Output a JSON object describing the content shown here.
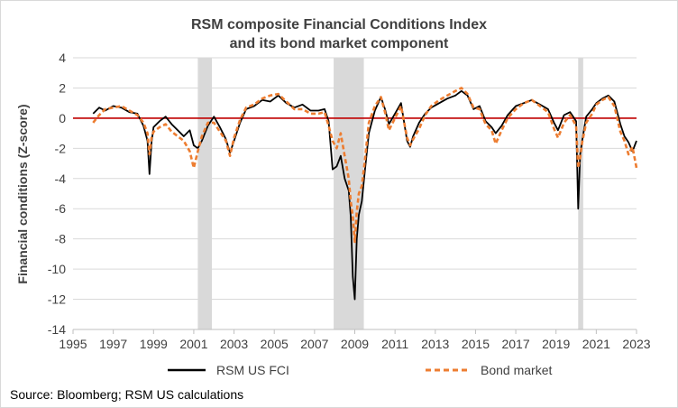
{
  "chart_data": {
    "type": "line",
    "title": "RSM composite Financial Conditions Index",
    "subtitle": "and its bond market  component",
    "xlabel": "",
    "ylabel": "Financial  conditions (Z-score)",
    "xlim": [
      1995,
      2023
    ],
    "ylim": [
      -14,
      4
    ],
    "x_ticks": [
      "1995",
      "1997",
      "1999",
      "2001",
      "2003",
      "2005",
      "2007",
      "2009",
      "2011",
      "2013",
      "2015",
      "2017",
      "2019",
      "2021",
      "2023"
    ],
    "y_ticks": [
      "4",
      "2",
      "0",
      "-2",
      "-4",
      "-6",
      "-8",
      "-10",
      "-12",
      "-14"
    ],
    "grid": "horizontal",
    "legend_position": "bottom",
    "reference_line": {
      "y": 0,
      "color": "#c00000"
    },
    "recessions": [
      [
        2001.2,
        2001.9
      ],
      [
        2007.95,
        2009.45
      ],
      [
        2020.1,
        2020.35
      ]
    ],
    "recession_color": "#d9d9d9",
    "source": "Source: Bloomberg;  RSM US calculations",
    "series": [
      {
        "name": "RSM US FCI",
        "color": "#000000",
        "style": "solid",
        "x": [
          1996,
          1996.3,
          1996.6,
          1997,
          1997.4,
          1997.8,
          1998.2,
          1998.5,
          1998.7,
          1998.8,
          1998.9,
          1999.0,
          1999.3,
          1999.6,
          1999.9,
          2000.2,
          2000.5,
          2000.8,
          2001.0,
          2001.2,
          2001.4,
          2001.7,
          2002.0,
          2002.3,
          2002.6,
          2002.8,
          2003.0,
          2003.3,
          2003.6,
          2004.0,
          2004.4,
          2004.8,
          2005.2,
          2005.6,
          2006.0,
          2006.4,
          2006.8,
          2007.2,
          2007.5,
          2007.7,
          2007.9,
          2008.1,
          2008.3,
          2008.5,
          2008.7,
          2008.8,
          2008.9,
          2009.0,
          2009.1,
          2009.2,
          2009.35,
          2009.5,
          2009.7,
          2010.0,
          2010.3,
          2010.5,
          2010.7,
          2011.0,
          2011.3,
          2011.6,
          2011.75,
          2011.9,
          2012.2,
          2012.5,
          2012.8,
          2013.2,
          2013.6,
          2014.0,
          2014.3,
          2014.6,
          2014.9,
          2015.2,
          2015.5,
          2015.8,
          2016.0,
          2016.3,
          2016.6,
          2017.0,
          2017.4,
          2017.8,
          2018.2,
          2018.6,
          2018.9,
          2019.1,
          2019.4,
          2019.7,
          2020.0,
          2020.1,
          2020.2,
          2020.3,
          2020.5,
          2020.8,
          2021.0,
          2021.3,
          2021.6,
          2021.9,
          2022.2,
          2022.4,
          2022.6,
          2022.8,
          2023.0
        ],
        "y": [
          0.3,
          0.7,
          0.5,
          0.8,
          0.7,
          0.4,
          0.3,
          -0.5,
          -1.5,
          -3.7,
          -1.6,
          -0.6,
          -0.2,
          0.1,
          -0.4,
          -0.8,
          -1.2,
          -0.8,
          -1.8,
          -2.0,
          -1.5,
          -0.5,
          0.1,
          -0.6,
          -1.4,
          -2.3,
          -1.5,
          -0.3,
          0.6,
          0.8,
          1.2,
          1.1,
          1.5,
          1.0,
          0.7,
          0.9,
          0.5,
          0.5,
          0.6,
          -0.2,
          -3.4,
          -3.2,
          -2.5,
          -4.0,
          -4.8,
          -6.5,
          -10.5,
          -12.0,
          -8.0,
          -6.4,
          -5.5,
          -3.5,
          -1.0,
          0.5,
          1.4,
          0.6,
          -0.4,
          0.3,
          1.0,
          -1.5,
          -1.9,
          -1.2,
          -0.3,
          0.3,
          0.7,
          1.0,
          1.3,
          1.5,
          1.8,
          1.5,
          0.6,
          0.8,
          -0.2,
          -0.6,
          -1.0,
          -0.5,
          0.2,
          0.8,
          1.0,
          1.2,
          0.9,
          0.6,
          -0.3,
          -0.8,
          0.2,
          0.4,
          -0.2,
          -6.0,
          -2.4,
          -1.5,
          0.1,
          0.6,
          1.0,
          1.3,
          1.5,
          1.1,
          -0.4,
          -1.2,
          -1.6,
          -2.2,
          -1.5
        ]
      },
      {
        "name": "Bond market",
        "color": "#ed7d31",
        "style": "dashed",
        "x": [
          1996,
          1996.3,
          1996.6,
          1997,
          1997.4,
          1997.8,
          1998.2,
          1998.5,
          1998.7,
          1998.8,
          1998.9,
          1999.0,
          1999.3,
          1999.6,
          1999.9,
          2000.2,
          2000.5,
          2000.8,
          2001.0,
          2001.2,
          2001.4,
          2001.7,
          2002.0,
          2002.3,
          2002.6,
          2002.8,
          2003.0,
          2003.3,
          2003.6,
          2004.0,
          2004.4,
          2004.8,
          2005.2,
          2005.6,
          2006.0,
          2006.4,
          2006.8,
          2007.2,
          2007.5,
          2007.7,
          2007.9,
          2008.1,
          2008.3,
          2008.5,
          2008.7,
          2008.8,
          2008.9,
          2009.0,
          2009.1,
          2009.2,
          2009.35,
          2009.5,
          2009.7,
          2010.0,
          2010.3,
          2010.5,
          2010.7,
          2011.0,
          2011.3,
          2011.6,
          2011.75,
          2011.9,
          2012.2,
          2012.5,
          2012.8,
          2013.2,
          2013.6,
          2014.0,
          2014.3,
          2014.6,
          2014.9,
          2015.2,
          2015.5,
          2015.8,
          2016.0,
          2016.3,
          2016.6,
          2017.0,
          2017.4,
          2017.8,
          2018.2,
          2018.6,
          2018.9,
          2019.1,
          2019.4,
          2019.7,
          2020.0,
          2020.1,
          2020.2,
          2020.3,
          2020.5,
          2020.8,
          2021.0,
          2021.3,
          2021.6,
          2021.9,
          2022.2,
          2022.4,
          2022.6,
          2022.8,
          2023.0
        ],
        "y": [
          -0.3,
          0.2,
          0.6,
          0.7,
          0.8,
          0.5,
          0.2,
          -0.3,
          -1.0,
          -2.4,
          -1.3,
          -0.9,
          -0.6,
          -0.4,
          -0.9,
          -1.2,
          -1.5,
          -2.2,
          -3.3,
          -2.2,
          -1.2,
          -0.3,
          -0.3,
          -0.9,
          -1.5,
          -2.5,
          -1.3,
          -0.1,
          0.7,
          0.9,
          1.3,
          1.5,
          1.6,
          1.1,
          0.6,
          0.6,
          0.3,
          0.3,
          0.4,
          -0.5,
          -1.5,
          -2.0,
          -1.0,
          -2.5,
          -4.0,
          -5.5,
          -6.5,
          -8.2,
          -6.2,
          -5.0,
          -4.5,
          -2.8,
          -0.3,
          0.8,
          1.4,
          0.4,
          -0.8,
          0.0,
          0.8,
          -1.3,
          -1.8,
          -1.4,
          -0.7,
          0.2,
          0.8,
          1.2,
          1.5,
          1.8,
          2.0,
          1.6,
          0.7,
          0.6,
          -0.4,
          -0.8,
          -1.7,
          -0.8,
          0.0,
          0.6,
          1.0,
          1.2,
          0.8,
          0.4,
          -0.7,
          -1.3,
          -0.3,
          0.2,
          -0.5,
          -3.3,
          -2.6,
          -1.6,
          -0.3,
          0.3,
          0.9,
          1.2,
          1.4,
          0.8,
          -0.9,
          -1.5,
          -2.4,
          -1.9,
          -3.3
        ]
      }
    ]
  }
}
